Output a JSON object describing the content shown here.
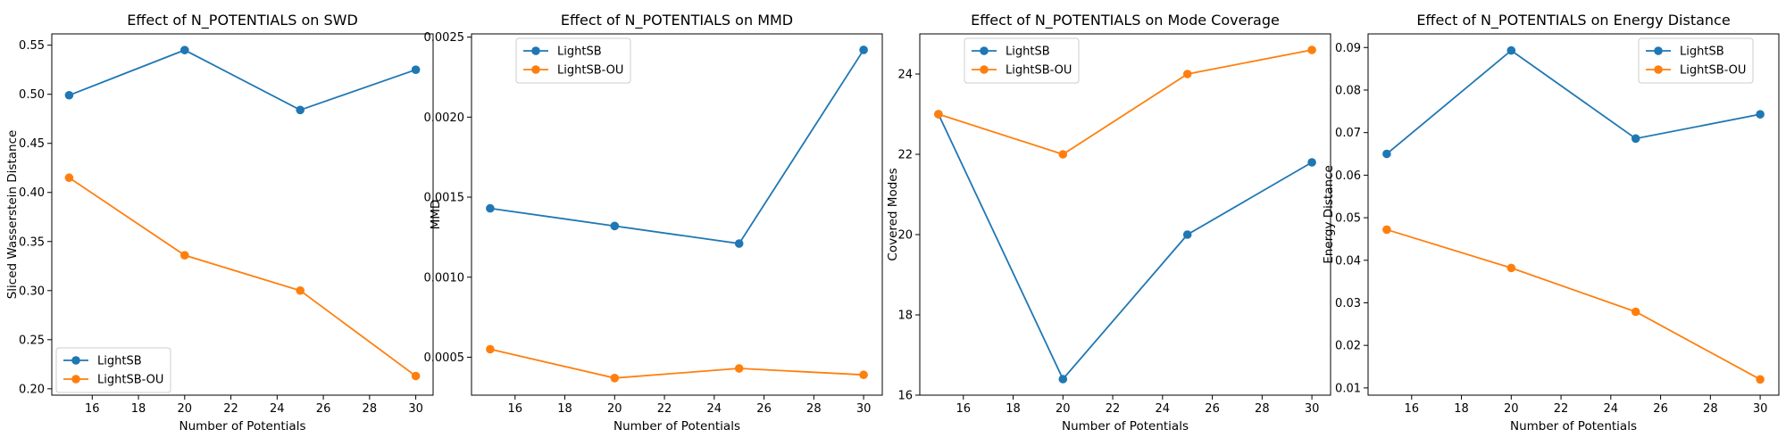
{
  "chart_data": [
    {
      "type": "line",
      "title": "Effect of N_POTENTIALS on SWD",
      "xlabel": "Number of Potentials",
      "ylabel": "Sliced Wasserstein Distance",
      "x": [
        15,
        20,
        25,
        30
      ],
      "xlim": [
        14.25,
        30.75
      ],
      "ylim": [
        0.1935,
        0.5615
      ],
      "xticks": [
        16,
        18,
        20,
        22,
        24,
        26,
        28,
        30
      ],
      "xtick_labels": [
        "16",
        "18",
        "20",
        "22",
        "24",
        "26",
        "28",
        "30"
      ],
      "yticks": [
        0.2,
        0.25,
        0.3,
        0.35,
        0.4,
        0.45,
        0.5,
        0.55
      ],
      "ytick_labels": [
        "0.20",
        "0.25",
        "0.30",
        "0.35",
        "0.40",
        "0.45",
        "0.50",
        "0.55"
      ],
      "legend_position": "lower-left",
      "series": [
        {
          "name": "LightSB",
          "color": "#1f77b4",
          "values": [
            0.499,
            0.545,
            0.484,
            0.525
          ]
        },
        {
          "name": "LightSB-OU",
          "color": "#ff7f0e",
          "values": [
            0.415,
            0.336,
            0.3,
            0.213
          ]
        }
      ]
    },
    {
      "type": "line",
      "title": "Effect of N_POTENTIALS on MMD",
      "xlabel": "Number of Potentials",
      "ylabel": "MMD",
      "x": [
        15,
        20,
        25,
        30
      ],
      "xlim": [
        14.25,
        30.75
      ],
      "ylim": [
        0.000263,
        0.00252
      ],
      "xticks": [
        16,
        18,
        20,
        22,
        24,
        26,
        28,
        30
      ],
      "xtick_labels": [
        "16",
        "18",
        "20",
        "22",
        "24",
        "26",
        "28",
        "30"
      ],
      "yticks": [
        0.0005,
        0.001,
        0.0015,
        0.002,
        0.0025
      ],
      "ytick_labels": [
        "0.0005",
        "0.0010",
        "0.0015",
        "0.0020",
        "0.0025"
      ],
      "ytick_suffix_hidden_top": true,
      "legend_position": "top-left",
      "series": [
        {
          "name": "LightSB",
          "color": "#1f77b4",
          "values": [
            0.00143,
            0.00132,
            0.00121,
            0.00242
          ]
        },
        {
          "name": "LightSB-OU",
          "color": "#ff7f0e",
          "values": [
            0.00055,
            0.00037,
            0.00043,
            0.00039
          ]
        }
      ]
    },
    {
      "type": "line",
      "title": "Effect of N_POTENTIALS on Mode Coverage",
      "xlabel": "Number of Potentials",
      "ylabel": "Covered Modes",
      "x": [
        15,
        20,
        25,
        30
      ],
      "xlim": [
        14.25,
        30.75
      ],
      "ylim": [
        16.0,
        25.0
      ],
      "xticks": [
        16,
        18,
        20,
        22,
        24,
        26,
        28,
        30
      ],
      "xtick_labels": [
        "16",
        "18",
        "20",
        "22",
        "24",
        "26",
        "28",
        "30"
      ],
      "yticks": [
        16,
        18,
        20,
        22,
        24
      ],
      "ytick_labels": [
        "16",
        "18",
        "20",
        "22",
        "24"
      ],
      "legend_position": "top-left",
      "series": [
        {
          "name": "LightSB",
          "color": "#1f77b4",
          "values": [
            23.0,
            16.4,
            20.0,
            21.8
          ]
        },
        {
          "name": "LightSB-OU",
          "color": "#ff7f0e",
          "values": [
            23.0,
            22.0,
            24.0,
            24.6
          ]
        }
      ]
    },
    {
      "type": "line",
      "title": "Effect of N_POTENTIALS on Energy Distance",
      "xlabel": "Number of Potentials",
      "ylabel": "Energy Distance",
      "x": [
        15,
        20,
        25,
        30
      ],
      "xlim": [
        14.25,
        30.75
      ],
      "ylim": [
        0.0083,
        0.0932
      ],
      "xticks": [
        16,
        18,
        20,
        22,
        24,
        26,
        28,
        30
      ],
      "xtick_labels": [
        "16",
        "18",
        "20",
        "22",
        "24",
        "26",
        "28",
        "30"
      ],
      "yticks": [
        0.01,
        0.02,
        0.03,
        0.04,
        0.05,
        0.06,
        0.07,
        0.08,
        0.09
      ],
      "ytick_labels": [
        "0.01",
        "0.02",
        "0.03",
        "0.04",
        "0.05",
        "0.06",
        "0.07",
        "0.08",
        "0.09"
      ],
      "legend_position": "top-right",
      "series": [
        {
          "name": "LightSB",
          "color": "#1f77b4",
          "values": [
            0.065,
            0.0893,
            0.0686,
            0.0743
          ]
        },
        {
          "name": "LightSB-OU",
          "color": "#ff7f0e",
          "values": [
            0.0472,
            0.0382,
            0.0279,
            0.012
          ]
        }
      ]
    }
  ]
}
